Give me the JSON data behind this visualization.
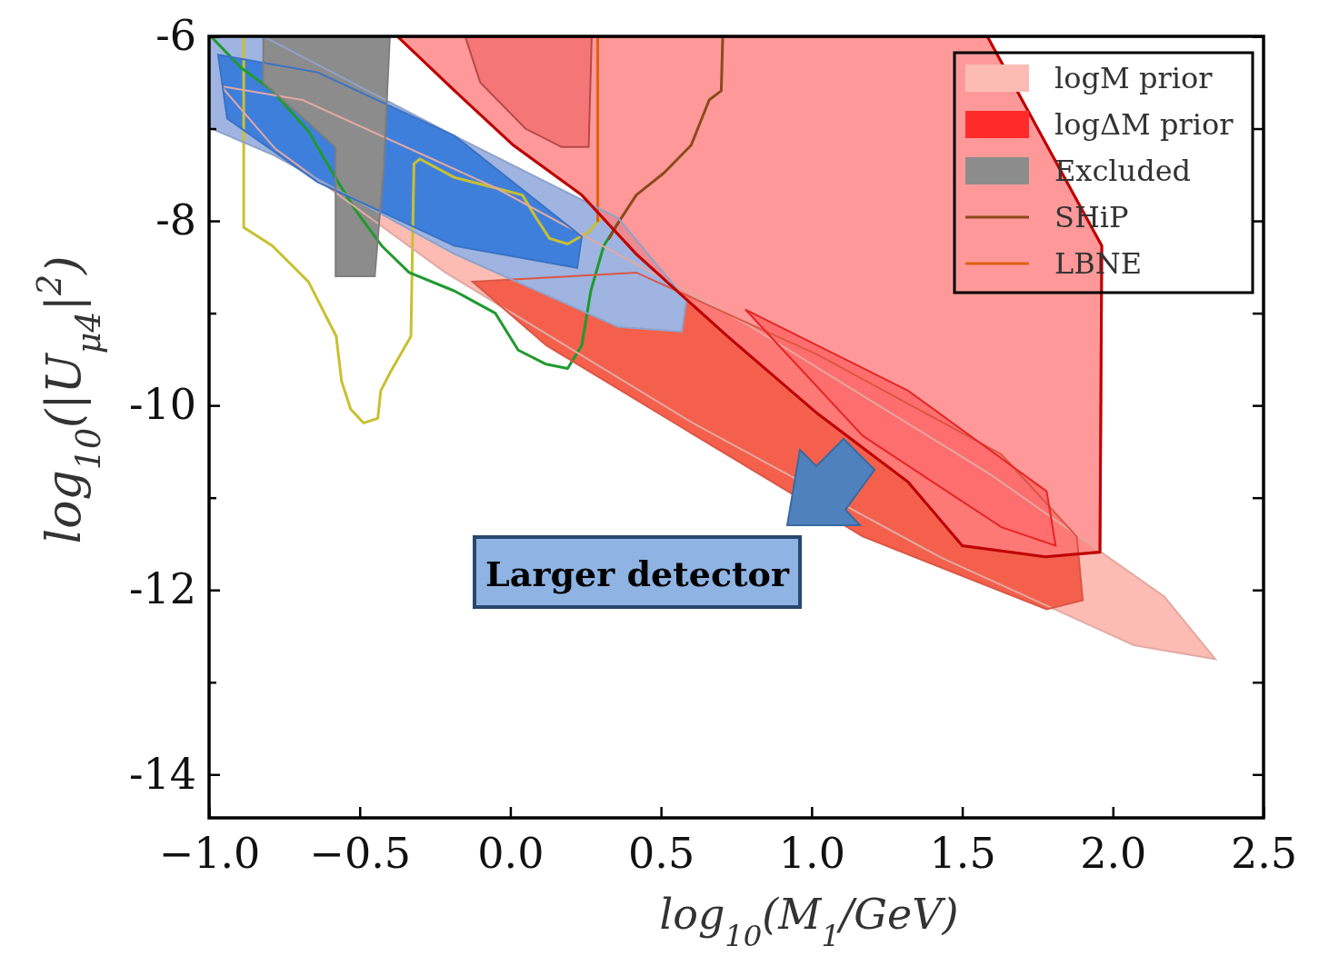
{
  "chart_data": {
    "type": "line",
    "xlabel": "log$_{10}$(M$_{1}$/GeV)",
    "ylabel": "log$_{10}$(|U$_{μ4}$|$^{2}$)",
    "xlim": [
      -1,
      2.5
    ],
    "ylim": [
      -14.47,
      -6
    ],
    "xticks": [
      {
        "value": -1,
        "label": "−1.0"
      },
      {
        "value": -0.5,
        "label": "−0.5"
      },
      {
        "value": 0,
        "label": "0.0"
      },
      {
        "value": 0.5,
        "label": "0.5"
      },
      {
        "value": 1,
        "label": "1.0"
      },
      {
        "value": 1.5,
        "label": "1.5"
      },
      {
        "value": 2,
        "label": "2.0"
      },
      {
        "value": 2.5,
        "label": "2.5"
      }
    ],
    "yticks": [
      -6,
      {
        "value": -7,
        "label": null
      },
      -8,
      {
        "value": -9,
        "label": null
      },
      -10,
      {
        "value": -11,
        "label": null
      },
      -12,
      {
        "value": -13,
        "label": null
      },
      -14
    ],
    "grid": false,
    "legend": "top right",
    "annotations": [
      "Larger detector"
    ],
    "series": [
      {
        "type": "area",
        "name": "logM prior",
        "color": "#fcbcb4",
        "x": [
          2.34,
          2.17,
          1.59,
          0.78,
          -0.05,
          -0.69,
          -0.96,
          -0.78,
          -0.22,
          0.6,
          1.43,
          2.07
        ],
        "values": [
          -12.75,
          -12.07,
          -10.74,
          -9.11,
          -7.64,
          -6.69,
          -6.54,
          -7.22,
          -8.55,
          -10.18,
          -11.65,
          -12.6
        ]
      },
      {
        "type": "area",
        "color": "#f4604c",
        "x": [
          -0.125,
          0.418,
          1.02,
          1.63,
          1.88,
          1.9,
          1.78,
          1.17,
          0.57,
          0.12
        ],
        "values": [
          -8.66,
          -8.56,
          -9.45,
          -10.53,
          -11.42,
          -12.11,
          -12.21,
          -11.42,
          -10.24,
          -9.35
        ]
      },
      {
        "type": "area",
        "name": "logΔM prior",
        "color": "#ff2a2a",
        "x": [
          0.78,
          1.32,
          1.78,
          1.81,
          1.63,
          1.17
        ],
        "values": [
          -8.96,
          -9.84,
          -10.93,
          -11.52,
          -11.32,
          -10.33
        ]
      },
      {
        "type": "area",
        "color": "#9fb4e0",
        "x": [
          -1,
          -0.82,
          -0.185,
          0.358,
          0.584,
          0.569,
          0.358,
          -0.185,
          -0.79,
          -1
        ],
        "values": [
          -6,
          -6,
          -7.08,
          -7.97,
          -8.86,
          -9.2,
          -9.15,
          -8.36,
          -7.28,
          -6.99
        ]
      },
      {
        "type": "area",
        "color": "#3f7fdc",
        "x": [
          -0.97,
          -0.64,
          -0.185,
          0.237,
          0.222,
          -0.185,
          -0.64,
          -0.94
        ],
        "values": [
          -6.2,
          -6.39,
          -7.08,
          -8.17,
          -8.51,
          -8.27,
          -7.58,
          -6.89
        ]
      },
      {
        "type": "area",
        "name": "Excluded",
        "color": "#8c8c8c",
        "x": [
          -0.82,
          -0.4,
          -0.42,
          -0.45,
          -0.58,
          -0.58,
          -0.82
        ],
        "values": [
          -6,
          -6,
          -7.4,
          -8.6,
          -8.6,
          -7.2,
          -6.5
        ]
      },
      {
        "type": "area",
        "color": "#cd5050",
        "x": [
          -0.15,
          0.27,
          0.26,
          0.17,
          0.05,
          -0.1
        ],
        "values": [
          -6,
          -6,
          -7.2,
          -7.2,
          -7,
          -6.5
        ]
      },
      {
        "type": "area",
        "color": "#ff8080",
        "x": [
          -0.375,
          -0.185,
          0.01,
          0.237,
          0.418,
          0.72,
          1.02,
          1.32,
          1.5,
          1.776,
          1.957,
          1.963,
          1.583
        ],
        "values": [
          -6,
          -6.59,
          -7.18,
          -7.72,
          -8.36,
          -9.25,
          -10.09,
          -10.83,
          -11.52,
          -11.64,
          -11.59,
          -8.27,
          -6
        ]
      },
      {
        "type": "line",
        "color": "#c8c030",
        "x": [
          -0.885,
          -0.885,
          -0.79,
          -0.67,
          -0.578,
          -0.56,
          -0.53,
          -0.487,
          -0.44,
          -0.43,
          -0.4,
          -0.33,
          -0.32,
          -0.3,
          -0.185,
          -0.065,
          0.04,
          0.086,
          0.13,
          0.19,
          0.26,
          0.3
        ],
        "values": [
          -6,
          -8.07,
          -8.27,
          -8.66,
          -9.25,
          -9.74,
          -10.04,
          -10.19,
          -10.14,
          -9.84,
          -9.65,
          -9.25,
          -7.38,
          -7.33,
          -7.53,
          -7.63,
          -7.72,
          -7.97,
          -8.19,
          -8.25,
          -8.12,
          -7.97
        ]
      },
      {
        "type": "line",
        "color": "#1f9a2f",
        "x": [
          -0.994,
          -0.894,
          -0.79,
          -0.67,
          -0.59,
          -0.517,
          -0.427,
          -0.336,
          -0.185,
          -0.05,
          0.026,
          0.116,
          0.19,
          0.237,
          0.267,
          0.31,
          0.358
        ],
        "values": [
          -6,
          -6.34,
          -6.59,
          -7.03,
          -7.48,
          -7.87,
          -8.27,
          -8.56,
          -8.76,
          -9,
          -9.4,
          -9.55,
          -9.6,
          -9.35,
          -8.76,
          -8.27,
          -8.02
        ]
      },
      {
        "type": "line",
        "name": "SHiP",
        "color": "#8b4a1c",
        "x": [
          0.705,
          0.7,
          0.66,
          0.6,
          0.51,
          0.418,
          0.358,
          0.328
        ],
        "values": [
          -6,
          -6.59,
          -6.69,
          -7.18,
          -7.48,
          -7.72,
          -8.02,
          -8.19
        ]
      },
      {
        "type": "line",
        "name": "LBNE",
        "color": "#e06010",
        "x": [
          0.29,
          0.29
        ],
        "values": [
          -6,
          -8
        ]
      }
    ]
  }
}
